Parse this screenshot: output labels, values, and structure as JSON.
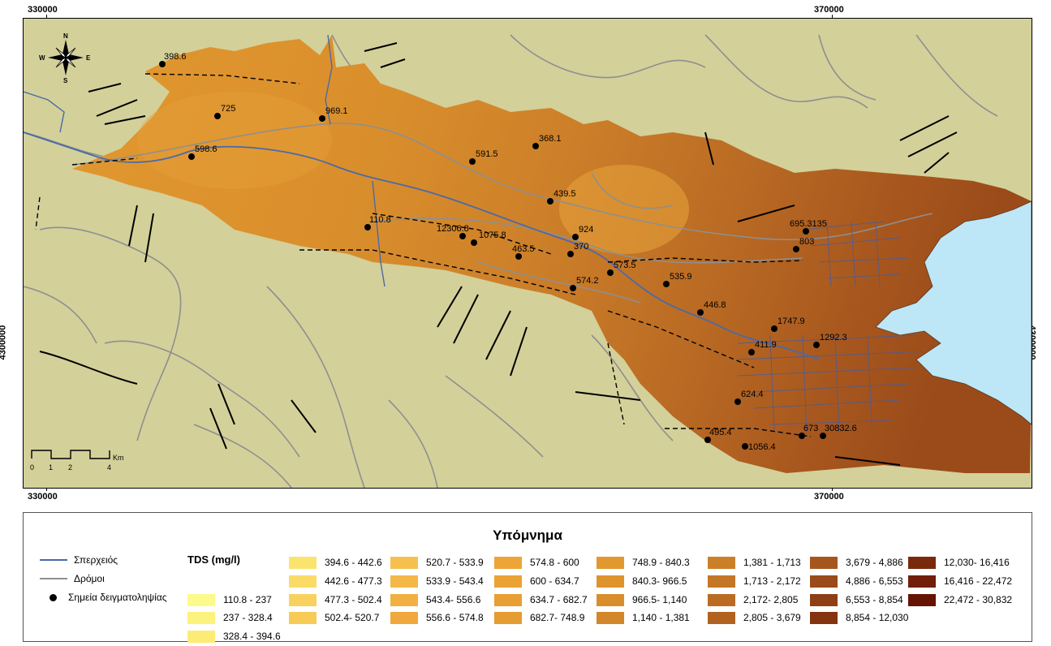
{
  "map": {
    "coords": {
      "top_left": "330000",
      "top_right": "370000",
      "bottom_left": "330000",
      "bottom_right": "370000",
      "left_mid": "4300000",
      "right_mid": "4300000"
    },
    "compass": {
      "n": "N",
      "s": "S",
      "e": "E",
      "w": "W"
    },
    "scalebar": {
      "ticks": [
        "0",
        "1",
        "2",
        "4"
      ],
      "unit": "Km"
    },
    "colors": {
      "background": "#d3d09a",
      "sea": "#bde6f7",
      "river": "#4a6aa8",
      "roads": "#8f8f8f",
      "faults": "#000000"
    },
    "points": [
      {
        "label": "398.6"
      },
      {
        "label": "725"
      },
      {
        "label": "969.1"
      },
      {
        "label": "598.6"
      },
      {
        "label": "591.5"
      },
      {
        "label": "368.1"
      },
      {
        "label": "439.5"
      },
      {
        "label": "110.8"
      },
      {
        "label": "12306.8"
      },
      {
        "label": "1075.8"
      },
      {
        "label": "463.5"
      },
      {
        "label": "924"
      },
      {
        "label": "370"
      },
      {
        "label": "573.5"
      },
      {
        "label": "574.2"
      },
      {
        "label": "535.9"
      },
      {
        "label": "446.8"
      },
      {
        "label": "695.3135"
      },
      {
        "label": "803"
      },
      {
        "label": "1747.9"
      },
      {
        "label": "411.9"
      },
      {
        "label": "1292.3"
      },
      {
        "label": "624.4"
      },
      {
        "label": "495.4"
      },
      {
        "label": "1056.4"
      },
      {
        "label": "673"
      },
      {
        "label": "30832.6"
      }
    ]
  },
  "legend": {
    "title": "Υπόμνημα",
    "river_label": "Σπερχειός",
    "roads_label": "Δρόμοι",
    "points_label": "Σημεία δειγματοληψίας",
    "tds_title": "TDS (mg/l)",
    "classes": [
      {
        "label": "110.8 - 237",
        "color": "#fdfa8c"
      },
      {
        "label": "237 - 328.4",
        "color": "#fcf27e"
      },
      {
        "label": "328.4 - 394.6",
        "color": "#fcec76"
      },
      {
        "label": "394.6 - 442.6",
        "color": "#fbe46e"
      },
      {
        "label": "442.6 - 477.3",
        "color": "#fadb66"
      },
      {
        "label": "477.3 - 502.4",
        "color": "#f9d25e"
      },
      {
        "label": "502.4- 520.7",
        "color": "#f8ca56"
      },
      {
        "label": "520.7 - 533.9",
        "color": "#f6c04f"
      },
      {
        "label": "533.9 - 543.4",
        "color": "#f4b848"
      },
      {
        "label": "543.4- 556.6",
        "color": "#f2b042"
      },
      {
        "label": "556.6 - 574.8",
        "color": "#f0a83c"
      },
      {
        "label": "574.8 - 600",
        "color": "#eea537"
      },
      {
        "label": "600 - 634.7",
        "color": "#eba235"
      },
      {
        "label": "634.7 - 682.7",
        "color": "#e89f33"
      },
      {
        "label": "682.7- 748.9",
        "color": "#e59c31"
      },
      {
        "label": "748.9 - 840.3",
        "color": "#e2982f"
      },
      {
        "label": "840.3- 966.5",
        "color": "#de932d"
      },
      {
        "label": "966.5- 1,140",
        "color": "#d98e2c"
      },
      {
        "label": "1,140 - 1,381",
        "color": "#d3872b"
      },
      {
        "label": "1,381 - 1,713",
        "color": "#cc7f29"
      },
      {
        "label": "1,713 - 2,172",
        "color": "#c47627"
      },
      {
        "label": "2,172- 2,805",
        "color": "#bb6c24"
      },
      {
        "label": "2,805 - 3,679",
        "color": "#b16221"
      },
      {
        "label": "3,679 - 4,886",
        "color": "#a6561d"
      },
      {
        "label": "4,886 - 6,553",
        "color": "#9b4b19"
      },
      {
        "label": "6,553 - 8,854",
        "color": "#8f3f15"
      },
      {
        "label": "8,854 - 12,030",
        "color": "#843410"
      },
      {
        "label": "12,030- 16,416",
        "color": "#7a2a0c"
      },
      {
        "label": "16,416 - 22,472",
        "color": "#701f08"
      },
      {
        "label": "22,472 - 30,832",
        "color": "#651404"
      }
    ]
  }
}
